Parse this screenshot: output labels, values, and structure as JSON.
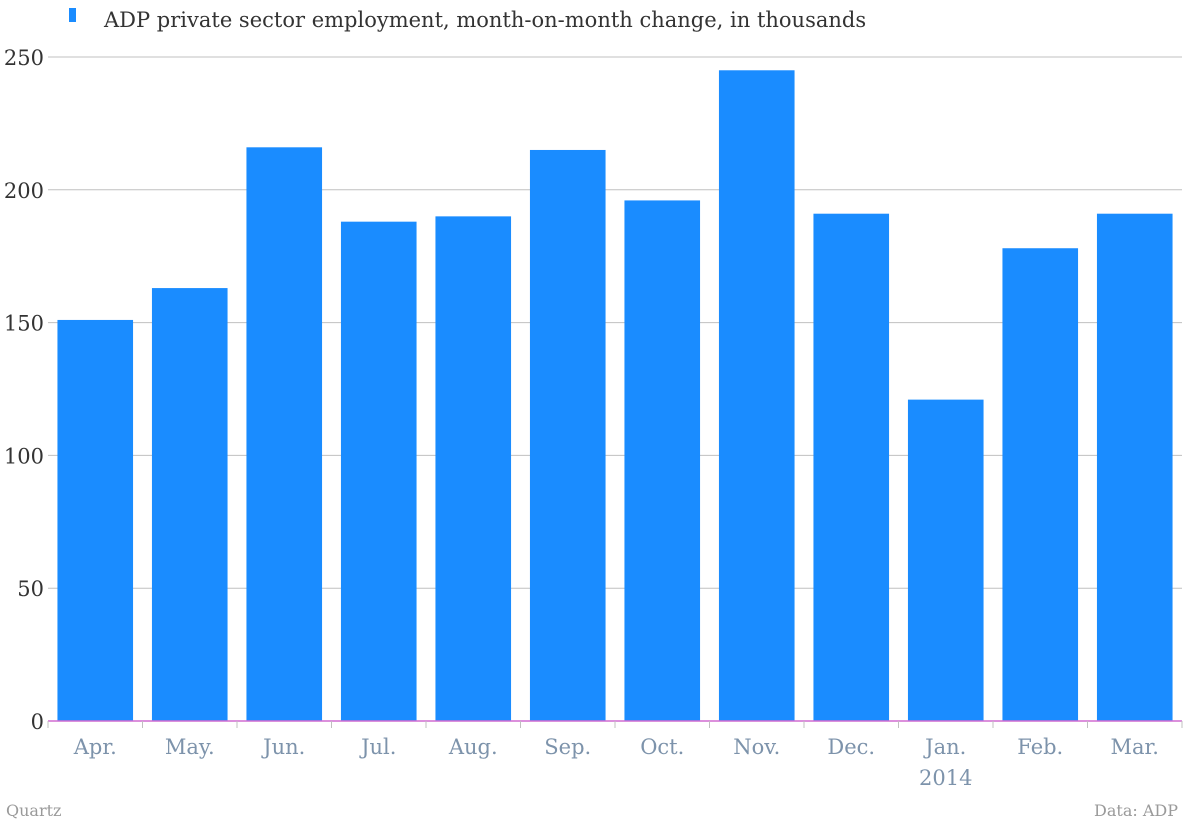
{
  "chart_data": {
    "type": "bar",
    "legend": "ADP private sector employment, month-on-month change, in thousands",
    "categories": [
      "Apr.",
      "May.",
      "Jun.",
      "Jul.",
      "Aug.",
      "Sep.",
      "Oct.",
      "Nov.",
      "Dec.",
      "Jan.",
      "Feb.",
      "Mar."
    ],
    "category_sublabels": [
      "",
      "",
      "",
      "",
      "",
      "",
      "",
      "",
      "",
      "2014",
      "",
      ""
    ],
    "series": [
      {
        "name": "ADP private sector employment, month-on-month change, in thousands",
        "values": [
          151,
          163,
          216,
          188,
          190,
          215,
          196,
          245,
          191,
          121,
          178,
          191
        ]
      }
    ],
    "ylim": [
      0,
      250
    ],
    "yticks": [
      0,
      50,
      100,
      150,
      200,
      250
    ],
    "grid": true,
    "legend_position": "top-left",
    "colors": {
      "bar": "#1a8cff",
      "grid": "#c0c0c0",
      "baseline": "#d16bd1"
    }
  },
  "footer": {
    "source_left": "Quartz",
    "source_right": "Data: ADP"
  }
}
